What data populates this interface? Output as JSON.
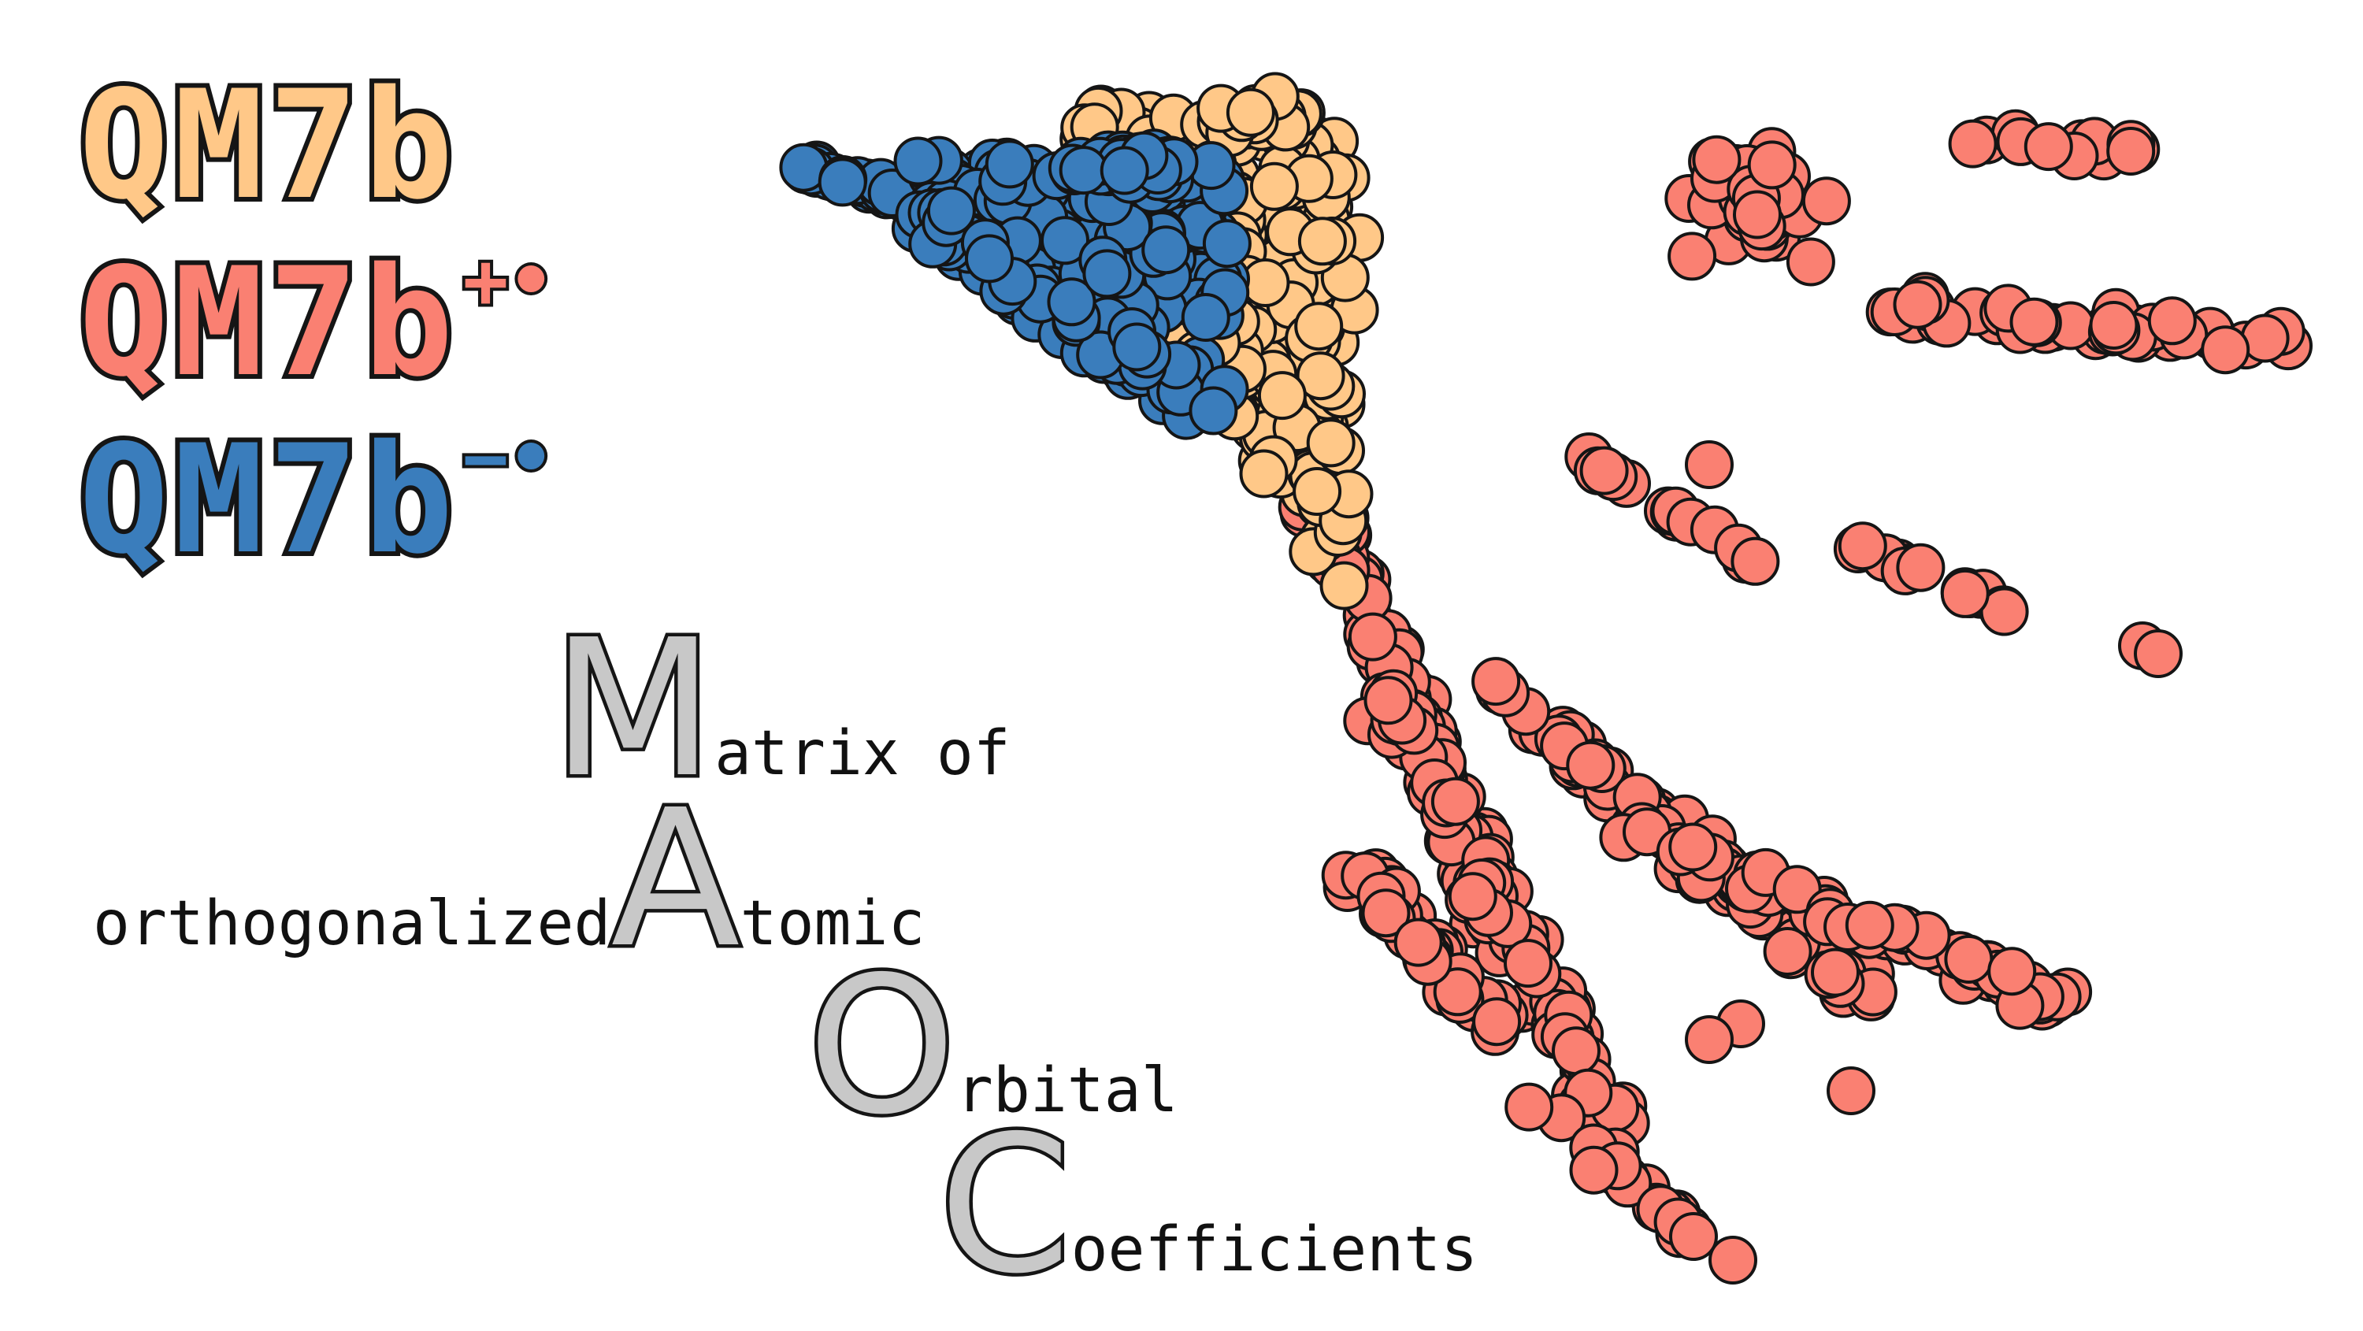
{
  "title_lines": [
    {
      "text": "QM7b",
      "superscript": "",
      "color": "#ffc888"
    },
    {
      "text": "QM7b",
      "superscript": "+•",
      "color": "#fa8072"
    },
    {
      "text": "QM7b",
      "superscript": "−•",
      "color": "#3a7dbc"
    }
  ],
  "acronym": [
    {
      "prefix": "",
      "letter": "M",
      "suffix": "atrix of"
    },
    {
      "prefix": "orthogonalized ",
      "letter": "A",
      "suffix": "tomic"
    },
    {
      "prefix": "",
      "letter": "O",
      "suffix": "rbital"
    },
    {
      "prefix": "",
      "letter": "C",
      "suffix": "oefficients"
    }
  ],
  "colors": {
    "neutral": "#ffc888",
    "cation": "#fa8072",
    "anion": "#3a7dbc",
    "outline": "#151515",
    "letter_fill": "#c8c8c8"
  }
}
